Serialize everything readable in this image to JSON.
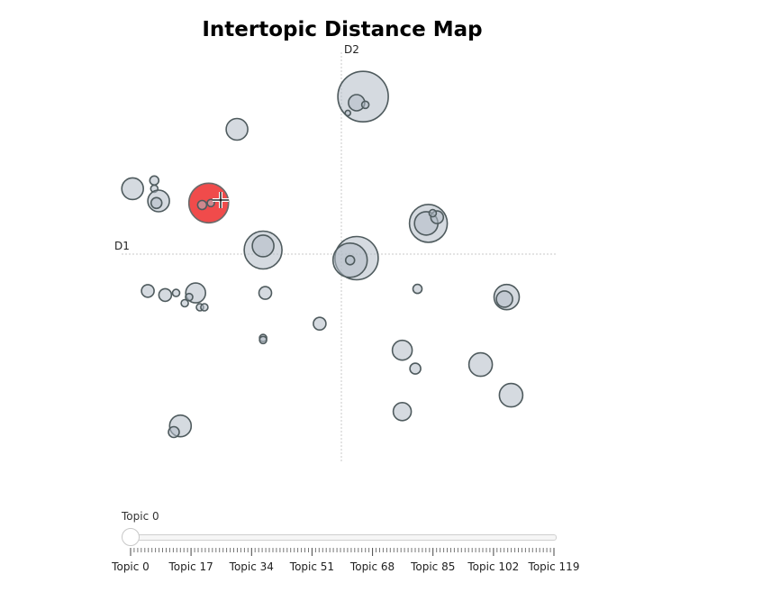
{
  "chart_data": {
    "type": "scatter",
    "title": "Intertopic Distance Map",
    "xlabel": "D1",
    "ylabel": "D2",
    "xlim": [
      -10,
      10
    ],
    "ylim": [
      -10,
      10
    ],
    "grid": false,
    "highlight_color": "#f04b4b",
    "bubble_color": "#b3bcc6",
    "bubbles": [
      {
        "x": 1.0,
        "y": 7.7,
        "r": 28
      },
      {
        "x": 0.7,
        "y": 7.4,
        "r": 9
      },
      {
        "x": 1.1,
        "y": 7.3,
        "r": 4
      },
      {
        "x": 0.3,
        "y": 6.9,
        "r": 3
      },
      {
        "x": -4.8,
        "y": 6.1,
        "r": 12
      },
      {
        "x": -9.6,
        "y": 3.2,
        "r": 12
      },
      {
        "x": -8.6,
        "y": 3.6,
        "r": 5
      },
      {
        "x": -8.6,
        "y": 3.2,
        "r": 4
      },
      {
        "x": -8.4,
        "y": 2.6,
        "r": 12
      },
      {
        "x": -8.5,
        "y": 2.5,
        "r": 6
      },
      {
        "x": -6.1,
        "y": 2.5,
        "r": 22,
        "highlight": true
      },
      {
        "x": -6.4,
        "y": 2.4,
        "r": 5
      },
      {
        "x": -6.0,
        "y": 2.5,
        "r": 4
      },
      {
        "x": -3.6,
        "y": 0.2,
        "r": 21
      },
      {
        "x": -3.6,
        "y": 0.4,
        "r": 12
      },
      {
        "x": 0.7,
        "y": -0.2,
        "r": 24
      },
      {
        "x": 0.4,
        "y": -0.3,
        "r": 19
      },
      {
        "x": 0.4,
        "y": -0.3,
        "r": 5
      },
      {
        "x": 4.0,
        "y": 1.5,
        "r": 21
      },
      {
        "x": 3.9,
        "y": 1.5,
        "r": 13
      },
      {
        "x": 4.4,
        "y": 1.8,
        "r": 7
      },
      {
        "x": 4.2,
        "y": 2.0,
        "r": 4
      },
      {
        "x": -8.9,
        "y": -1.8,
        "r": 7
      },
      {
        "x": -8.1,
        "y": -2.0,
        "r": 7
      },
      {
        "x": -7.6,
        "y": -1.9,
        "r": 4
      },
      {
        "x": -6.7,
        "y": -1.9,
        "r": 11
      },
      {
        "x": -7.0,
        "y": -2.1,
        "r": 4
      },
      {
        "x": -6.5,
        "y": -2.6,
        "r": 4
      },
      {
        "x": -7.2,
        "y": -2.4,
        "r": 4
      },
      {
        "x": -6.3,
        "y": -2.6,
        "r": 4
      },
      {
        "x": -3.5,
        "y": -1.9,
        "r": 7
      },
      {
        "x": -3.6,
        "y": -4.1,
        "r": 4
      },
      {
        "x": -3.6,
        "y": -4.2,
        "r": 4
      },
      {
        "x": -1.0,
        "y": -3.4,
        "r": 7
      },
      {
        "x": 3.5,
        "y": -1.7,
        "r": 5
      },
      {
        "x": 7.6,
        "y": -2.1,
        "r": 14
      },
      {
        "x": 7.5,
        "y": -2.2,
        "r": 9
      },
      {
        "x": 2.8,
        "y": -4.7,
        "r": 11
      },
      {
        "x": 3.4,
        "y": -5.6,
        "r": 6
      },
      {
        "x": 6.4,
        "y": -5.4,
        "r": 13
      },
      {
        "x": 7.8,
        "y": -6.9,
        "r": 13
      },
      {
        "x": 2.8,
        "y": -7.7,
        "r": 10
      },
      {
        "x": -7.4,
        "y": -8.4,
        "r": 12
      },
      {
        "x": -7.7,
        "y": -8.7,
        "r": 6
      }
    ]
  },
  "slider": {
    "current_label": "Topic 0",
    "min": 0,
    "max": 119,
    "value": 0,
    "tick_labels": [
      "Topic 0",
      "Topic 17",
      "Topic 34",
      "Topic 51",
      "Topic 68",
      "Topic 85",
      "Topic 102",
      "Topic 119"
    ]
  }
}
